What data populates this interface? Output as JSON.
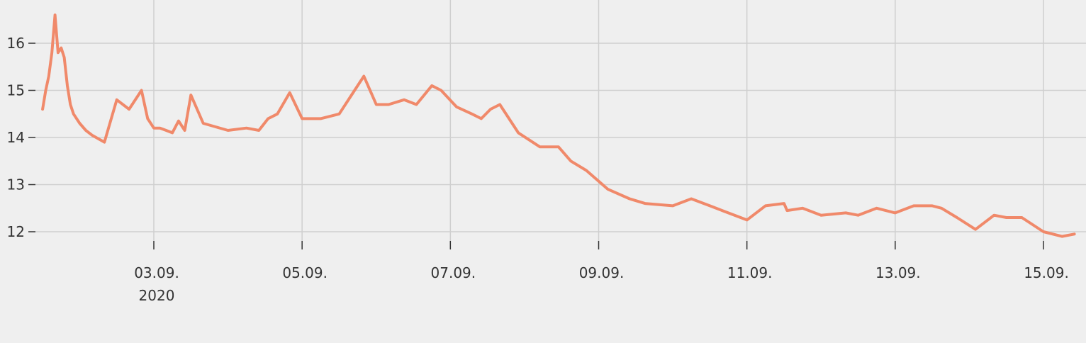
{
  "chart_data": {
    "type": "line",
    "title": "",
    "xlabel": "",
    "ylabel": "",
    "x_ticks": [
      {
        "date": "2020-09-03",
        "label": "03.09.",
        "sublabel": "2020"
      },
      {
        "date": "2020-09-05",
        "label": "05.09.",
        "sublabel": ""
      },
      {
        "date": "2020-09-07",
        "label": "07.09.",
        "sublabel": ""
      },
      {
        "date": "2020-09-09",
        "label": "09.09.",
        "sublabel": ""
      },
      {
        "date": "2020-09-11",
        "label": "11.09.",
        "sublabel": ""
      },
      {
        "date": "2020-09-13",
        "label": "13.09.",
        "sublabel": ""
      },
      {
        "date": "2020-09-15",
        "label": "15.09.",
        "sublabel": ""
      }
    ],
    "y_ticks": [
      12,
      13,
      14,
      15,
      16
    ],
    "xlim": [
      "2020-09-01T12:00",
      "2020-09-15T10:00"
    ],
    "ylim": [
      11.5,
      16.9
    ],
    "grid": true,
    "legend": "none",
    "series": [
      {
        "color": "#f0896a",
        "x": [
          "2020-09-01T12:00",
          "2020-09-01T13:00",
          "2020-09-01T14:00",
          "2020-09-01T15:00",
          "2020-09-01T16:00",
          "2020-09-01T17:00",
          "2020-09-01T18:00",
          "2020-09-01T19:00",
          "2020-09-01T20:00",
          "2020-09-01T21:00",
          "2020-09-01T22:00",
          "2020-09-02T00:00",
          "2020-09-02T02:00",
          "2020-09-02T04:00",
          "2020-09-02T08:00",
          "2020-09-02T12:00",
          "2020-09-02T16:00",
          "2020-09-02T20:00",
          "2020-09-02T22:00",
          "2020-09-03T00:00",
          "2020-09-03T02:00",
          "2020-09-03T04:00",
          "2020-09-03T06:00",
          "2020-09-03T08:00",
          "2020-09-03T10:00",
          "2020-09-03T12:00",
          "2020-09-03T16:00",
          "2020-09-04T00:00",
          "2020-09-04T06:00",
          "2020-09-04T10:00",
          "2020-09-04T13:00",
          "2020-09-04T16:00",
          "2020-09-04T20:00",
          "2020-09-05T00:00",
          "2020-09-05T06:00",
          "2020-09-05T12:00",
          "2020-09-05T16:00",
          "2020-09-05T20:00",
          "2020-09-06T00:00",
          "2020-09-06T04:00",
          "2020-09-06T09:00",
          "2020-09-06T13:00",
          "2020-09-06T18:00",
          "2020-09-06T21:00",
          "2020-09-07T02:00",
          "2020-09-07T07:00",
          "2020-09-07T10:00",
          "2020-09-07T13:00",
          "2020-09-07T16:00",
          "2020-09-07T22:00",
          "2020-09-08T05:00",
          "2020-09-08T11:00",
          "2020-09-08T15:00",
          "2020-09-08T20:00",
          "2020-09-09T03:00",
          "2020-09-09T10:00",
          "2020-09-09T15:00",
          "2020-09-10T00:00",
          "2020-09-10T06:00",
          "2020-09-10T12:00",
          "2020-09-10T16:00",
          "2020-09-11T00:00",
          "2020-09-11T06:00",
          "2020-09-11T12:00",
          "2020-09-11T13:00",
          "2020-09-11T18:00",
          "2020-09-12T00:00",
          "2020-09-12T08:00",
          "2020-09-12T12:00",
          "2020-09-12T18:00",
          "2020-09-13T00:00",
          "2020-09-13T06:00",
          "2020-09-13T12:00",
          "2020-09-13T15:00",
          "2020-09-13T20:00",
          "2020-09-14T02:00",
          "2020-09-14T08:00",
          "2020-09-14T12:00",
          "2020-09-14T17:00",
          "2020-09-15T00:00",
          "2020-09-15T06:00",
          "2020-09-15T10:00"
        ],
        "values": [
          14.6,
          15.0,
          15.3,
          15.8,
          16.6,
          15.8,
          15.9,
          15.7,
          15.1,
          14.7,
          14.5,
          14.3,
          14.15,
          14.05,
          13.9,
          14.8,
          14.6,
          15.0,
          14.4,
          14.2,
          14.2,
          14.15,
          14.1,
          14.35,
          14.15,
          14.9,
          14.3,
          14.15,
          14.2,
          14.15,
          14.4,
          14.5,
          14.95,
          14.4,
          14.4,
          14.5,
          14.9,
          15.3,
          14.7,
          14.7,
          14.8,
          14.7,
          15.1,
          15.0,
          14.65,
          14.5,
          14.4,
          14.6,
          14.7,
          14.1,
          13.8,
          13.8,
          13.5,
          13.3,
          12.9,
          12.7,
          12.6,
          12.55,
          12.7,
          12.55,
          12.45,
          12.25,
          12.55,
          12.6,
          12.45,
          12.5,
          12.35,
          12.4,
          12.35,
          12.5,
          12.4,
          12.55,
          12.55,
          12.5,
          12.3,
          12.05,
          12.35,
          12.3,
          12.3,
          12.0,
          11.9,
          11.95
        ]
      }
    ]
  }
}
